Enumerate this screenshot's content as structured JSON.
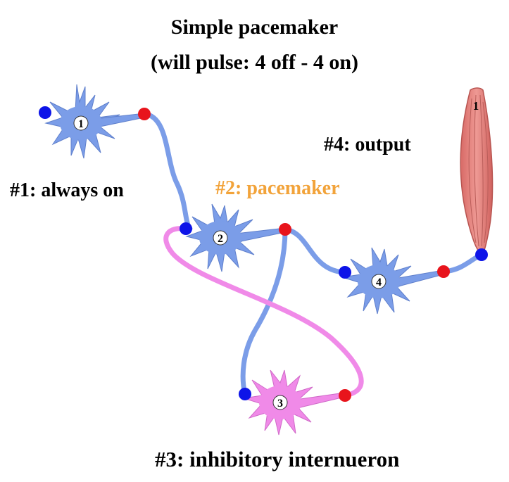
{
  "title": {
    "line1": "Simple pacemaker",
    "line2": "(will pulse: 4 off - 4 on)"
  },
  "labels": {
    "neuron1": "#1: always on",
    "neuron2": "#2: pacemaker",
    "neuron3": "#3: inhibitory internueron",
    "neuron4": "#4: output"
  },
  "neurons": [
    {
      "id": "1",
      "kind": "excitatory",
      "color": "#7b9de8"
    },
    {
      "id": "2",
      "kind": "excitatory",
      "color": "#7b9de8"
    },
    {
      "id": "3",
      "kind": "inhibitory",
      "color": "#f08ae8"
    },
    {
      "id": "4",
      "kind": "excitatory",
      "color": "#7b9de8"
    }
  ],
  "muscle": {
    "id": "1",
    "color": "#e5827e"
  },
  "colors": {
    "excitatory": "#7b9de8",
    "inhibitory": "#f08ae8",
    "pacemaker_label": "#f2a33a",
    "input_terminal": "#0d14e8",
    "output_terminal": "#e8141c"
  }
}
